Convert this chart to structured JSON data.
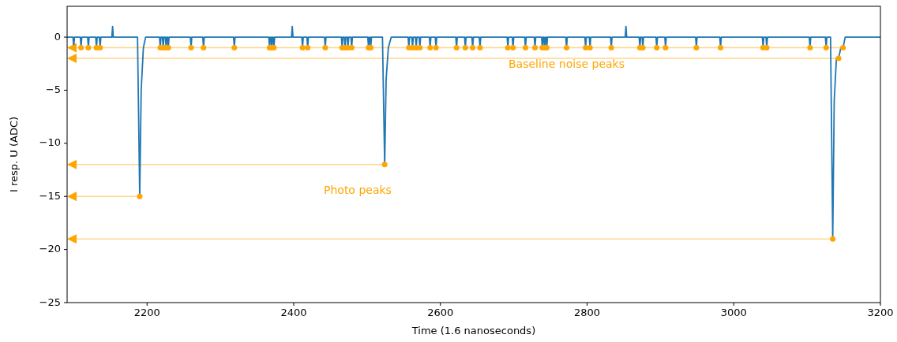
{
  "chart_data": {
    "type": "line",
    "xlabel": "Time (1.6 nanoseconds)",
    "ylabel": "I resp. U (ADC)",
    "xlim": [
      2091,
      3200
    ],
    "ylim": [
      -25,
      2.9
    ],
    "xticks": [
      2200,
      2400,
      2600,
      2800,
      3000,
      3200
    ],
    "yticks": [
      -25,
      -20,
      -15,
      -10,
      -5,
      0
    ],
    "grid": false,
    "series": [
      {
        "color": "#1f77b4",
        "x": [
          2091,
          2099,
          2100,
          2101,
          2109,
          2110,
          2111,
          2119,
          2120,
          2121,
          2130,
          2131,
          2132,
          2135,
          2136,
          2137,
          2152,
          2153,
          2154,
          2187,
          2190,
          2192,
          2195,
          2198,
          2217,
          2218,
          2219,
          2221,
          2222,
          2223,
          2225,
          2226,
          2227,
          2228,
          2229,
          2230,
          2259,
          2260,
          2261,
          2276,
          2277,
          2278,
          2318,
          2319,
          2320,
          2366,
          2367,
          2368,
          2369,
          2370,
          2371,
          2372,
          2373,
          2374,
          2397,
          2398,
          2399,
          2411,
          2412,
          2413,
          2418,
          2419,
          2420,
          2442,
          2443,
          2444,
          2465,
          2466,
          2467,
          2469,
          2470,
          2471,
          2473,
          2474,
          2475,
          2478,
          2479,
          2480,
          2501,
          2502,
          2503,
          2504,
          2505,
          2506,
          2521,
          2524,
          2526,
          2529,
          2533,
          2556,
          2557,
          2558,
          2561,
          2562,
          2563,
          2566,
          2567,
          2568,
          2571,
          2572,
          2573,
          2585,
          2586,
          2587,
          2593,
          2594,
          2595,
          2621,
          2622,
          2623,
          2633,
          2634,
          2635,
          2643,
          2644,
          2645,
          2653,
          2654,
          2655,
          2691,
          2692,
          2693,
          2698,
          2699,
          2700,
          2715,
          2716,
          2717,
          2728,
          2729,
          2730,
          2738,
          2739,
          2740,
          2741,
          2742,
          2743,
          2744,
          2745,
          2746,
          2771,
          2772,
          2773,
          2797,
          2798,
          2799,
          2803,
          2804,
          2805,
          2832,
          2833,
          2834,
          2852,
          2853,
          2854,
          2871,
          2872,
          2873,
          2875,
          2876,
          2877,
          2894,
          2895,
          2896,
          2906,
          2907,
          2908,
          2948,
          2949,
          2950,
          2981,
          2982,
          2983,
          3039,
          3040,
          3041,
          3044,
          3045,
          3046,
          3103,
          3104,
          3105,
          3125,
          3126,
          3127,
          3132,
          3135,
          3137,
          3140,
          3143,
          3146,
          3149,
          3152,
          3200
        ],
        "values": [
          0,
          0,
          -1,
          0,
          0,
          -1,
          0,
          0,
          -1,
          0,
          0,
          -1,
          0,
          0,
          -1,
          0,
          0,
          1,
          0,
          0,
          -15,
          -5,
          -1,
          0,
          0,
          -1,
          0,
          0,
          -1,
          0,
          0,
          -1,
          0,
          0,
          -1,
          0,
          0,
          -1,
          0,
          0,
          -1,
          0,
          0,
          -1,
          0,
          0,
          -1,
          0,
          0,
          -1,
          0,
          0,
          -1,
          0,
          0,
          1,
          0,
          0,
          -1,
          0,
          0,
          -1,
          0,
          0,
          -1,
          0,
          0,
          -1,
          0,
          0,
          -1,
          0,
          0,
          -1,
          0,
          0,
          -1,
          0,
          0,
          -1,
          0,
          0,
          -1,
          0,
          0,
          -12,
          -4,
          -1,
          0,
          0,
          -1,
          0,
          0,
          -1,
          0,
          0,
          -1,
          0,
          0,
          -1,
          0,
          0,
          -1,
          0,
          0,
          -1,
          0,
          0,
          -1,
          0,
          0,
          -1,
          0,
          0,
          -1,
          0,
          0,
          -1,
          0,
          0,
          -1,
          0,
          0,
          -1,
          0,
          0,
          -1,
          0,
          0,
          -1,
          0,
          0,
          -1,
          0,
          0,
          -1,
          0,
          0,
          -1,
          0,
          0,
          -1,
          0,
          0,
          -1,
          0,
          0,
          -1,
          0,
          0,
          -1,
          0,
          0,
          1,
          0,
          0,
          -1,
          0,
          0,
          -1,
          0,
          0,
          -1,
          0,
          0,
          -1,
          0,
          0,
          -1,
          0,
          0,
          -1,
          0,
          0,
          -1,
          0,
          0,
          -1,
          0,
          0,
          -1,
          0,
          0,
          -1,
          0,
          0,
          -19,
          -6,
          -2,
          -2,
          -1,
          -1,
          0,
          0
        ]
      },
      {
        "type": "scatter",
        "color": "#ffa500",
        "marker": "circle",
        "x": [
          2100,
          2110,
          2120,
          2131,
          2136,
          2190,
          2218,
          2222,
          2226,
          2229,
          2260,
          2277,
          2319,
          2367,
          2370,
          2373,
          2412,
          2419,
          2443,
          2466,
          2470,
          2474,
          2479,
          2502,
          2505,
          2524,
          2557,
          2562,
          2567,
          2572,
          2586,
          2594,
          2622,
          2634,
          2644,
          2654,
          2692,
          2699,
          2716,
          2729,
          2739,
          2742,
          2745,
          2772,
          2798,
          2804,
          2833,
          2872,
          2876,
          2895,
          2907,
          2949,
          2982,
          3040,
          3045,
          3104,
          3126,
          3135,
          3143,
          3149
        ],
        "values": [
          -1,
          -1,
          -1,
          -1,
          -1,
          -15,
          -1,
          -1,
          -1,
          -1,
          -1,
          -1,
          -1,
          -1,
          -1,
          -1,
          -1,
          -1,
          -1,
          -1,
          -1,
          -1,
          -1,
          -1,
          -1,
          -12,
          -1,
          -1,
          -1,
          -1,
          -1,
          -1,
          -1,
          -1,
          -1,
          -1,
          -1,
          -1,
          -1,
          -1,
          -1,
          -1,
          -1,
          -1,
          -1,
          -1,
          -1,
          -1,
          -1,
          -1,
          -1,
          -1,
          -1,
          -1,
          -1,
          -1,
          -1,
          -19,
          -2,
          -1
        ]
      }
    ],
    "ref_lines": [
      {
        "axis": "y",
        "value": -1,
        "color": "#ffa500"
      },
      {
        "axis": "y",
        "value": -2,
        "color": "#ffa500"
      },
      {
        "axis": "y",
        "value": -12,
        "color": "#ffa500"
      },
      {
        "axis": "y",
        "value": -15,
        "color": "#ffa500"
      },
      {
        "axis": "y",
        "value": -19,
        "color": "#ffa500"
      }
    ],
    "annotations": [
      "Baseline noise peaks",
      "Photo peaks"
    ]
  }
}
